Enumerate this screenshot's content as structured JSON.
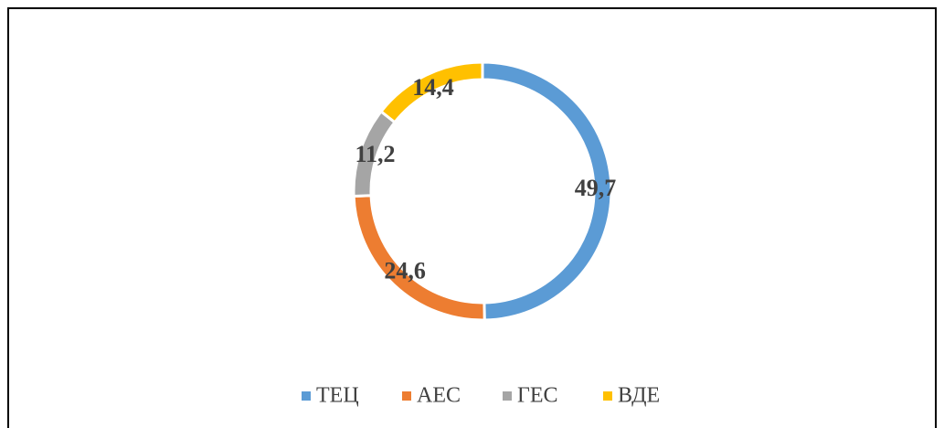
{
  "chart_data": {
    "type": "pie",
    "categories": [
      "ТЕЦ",
      "АЕС",
      "ГЕС",
      "ВДЕ"
    ],
    "values": [
      49.7,
      24.6,
      11.2,
      14.4
    ],
    "value_labels": [
      "49,7",
      "24,6",
      "11,2",
      "14,4"
    ],
    "colors": [
      "#5b9bd5",
      "#ed7d31",
      "#a5a5a5",
      "#ffc000"
    ],
    "donut": true,
    "legend": "bottom"
  }
}
